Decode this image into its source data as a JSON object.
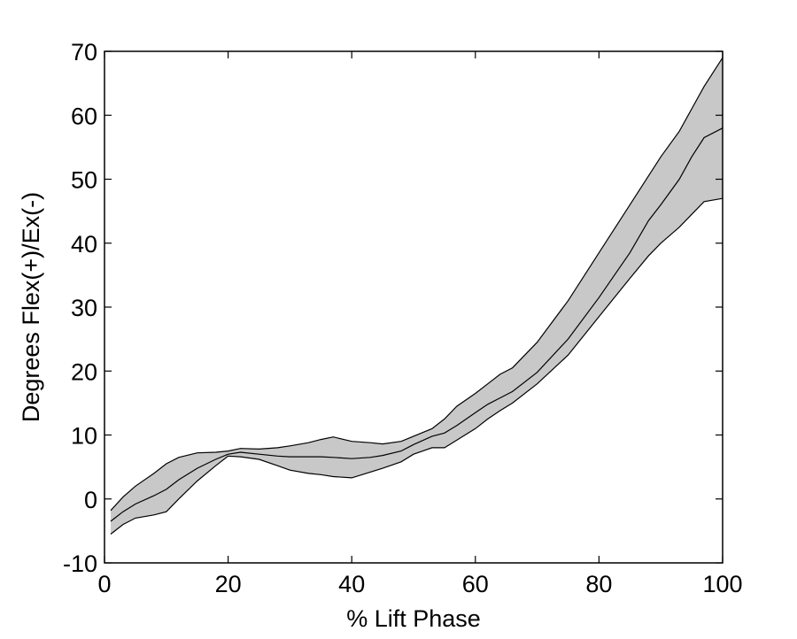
{
  "chart_data": {
    "type": "area",
    "title": "",
    "xlabel": "% Lift Phase",
    "ylabel": "Degrees Flex(+)/Ex(-)",
    "xlim": [
      0,
      100
    ],
    "ylim": [
      -10,
      70
    ],
    "xticks": [
      0,
      20,
      40,
      60,
      80,
      100
    ],
    "yticks": [
      -10,
      0,
      10,
      20,
      30,
      40,
      50,
      60,
      70
    ],
    "grid": false,
    "legend": "none",
    "band_color": "#c8c8c8",
    "line_color": "#000000",
    "x": [
      1,
      3,
      5,
      8,
      10,
      12,
      15,
      18,
      20,
      22,
      25,
      28,
      30,
      33,
      35,
      37,
      40,
      43,
      45,
      48,
      50,
      53,
      55,
      57,
      60,
      62,
      64,
      66,
      70,
      75,
      80,
      85,
      88,
      90,
      93,
      95,
      97,
      100
    ],
    "series": [
      {
        "role": "mean",
        "values": [
          -3.5,
          -2.0,
          -0.8,
          0.5,
          1.5,
          3.0,
          4.8,
          6.2,
          7.0,
          7.3,
          7.0,
          6.7,
          6.6,
          6.6,
          6.6,
          6.5,
          6.3,
          6.5,
          6.8,
          7.5,
          8.5,
          9.8,
          10.3,
          11.5,
          13.5,
          14.8,
          15.8,
          16.8,
          19.8,
          25.0,
          31.5,
          38.5,
          43.5,
          46.0,
          50.0,
          53.5,
          56.5,
          58.0
        ]
      },
      {
        "role": "upper",
        "values": [
          -1.8,
          0.3,
          2.0,
          4.0,
          5.5,
          6.5,
          7.2,
          7.3,
          7.5,
          7.9,
          7.8,
          8.0,
          8.3,
          8.8,
          9.3,
          9.7,
          9.0,
          8.8,
          8.6,
          9.0,
          9.8,
          11.0,
          12.5,
          14.5,
          16.5,
          18.0,
          19.5,
          20.5,
          24.5,
          31.0,
          38.5,
          46.0,
          50.5,
          53.5,
          57.5,
          61.0,
          64.5,
          69.0
        ]
      },
      {
        "role": "lower",
        "values": [
          -5.5,
          -4.0,
          -3.0,
          -2.5,
          -2.0,
          0.0,
          2.8,
          5.2,
          6.7,
          6.6,
          6.2,
          5.2,
          4.5,
          4.0,
          3.8,
          3.5,
          3.3,
          4.2,
          4.8,
          5.8,
          7.0,
          8.0,
          8.0,
          9.2,
          11.0,
          12.5,
          13.8,
          15.0,
          18.0,
          22.5,
          28.5,
          34.5,
          38.0,
          40.0,
          42.5,
          44.5,
          46.5,
          47.0
        ]
      }
    ]
  }
}
